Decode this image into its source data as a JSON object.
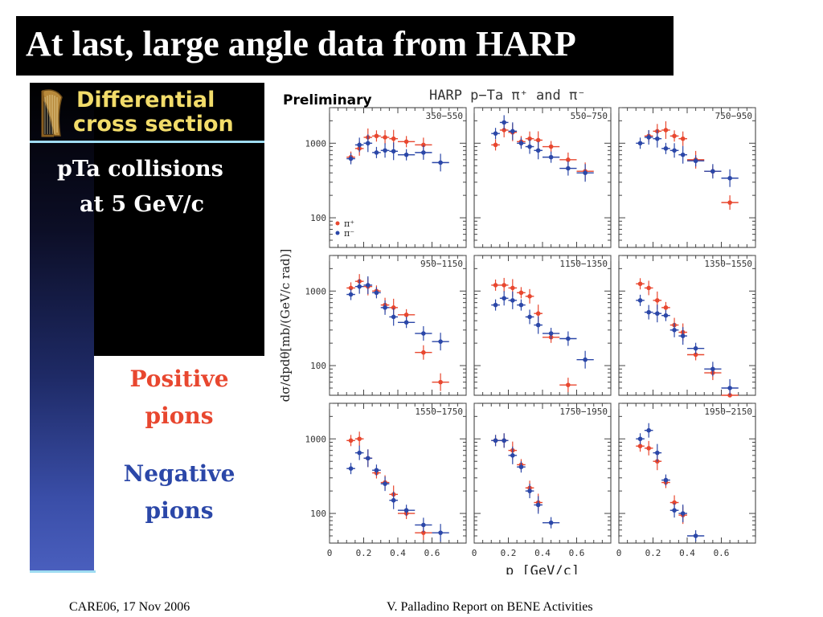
{
  "slide": {
    "title": "At last, large angle data from HARP",
    "footer_left": "CARE06, 17 Nov 2006",
    "footer_right": "V. Palladino Report on BENE Activities"
  },
  "sidebar": {
    "caption_line1": "Differential",
    "caption_line2": "cross section",
    "collision_line1": "pTa collisions",
    "collision_line2": "at 5 GeV/c",
    "positive_line1": "Positive",
    "positive_line2": "pions",
    "negative_line1": "Negative",
    "negative_line2": "pions",
    "harp_icon": "harp-icon"
  },
  "colors": {
    "positive": "#e8472f",
    "negative": "#2b47a8",
    "caption": "#f2dc6a",
    "rule": "#9fdcf2"
  },
  "chart_data": {
    "type": "scatter",
    "preliminary_label": "Preliminary",
    "title": "HARP p−Ta π⁺ and π⁻",
    "ylabel": "dσ/dpdθ[mb/(GeV/c rad)]",
    "xlabel": "p  [GeV/c]",
    "xlim": [
      0,
      0.8
    ],
    "ylim": [
      40,
      3000
    ],
    "y_scale": "log",
    "x_ticks": [
      "0",
      "0.2",
      "0.4",
      "0.6"
    ],
    "y_ticks": [
      "1000",
      "100"
    ],
    "legend": {
      "position": "left",
      "entries": [
        "π⁺",
        "π⁻"
      ]
    },
    "panels": [
      {
        "label": "350−550",
        "series": [
          {
            "name": "π⁺",
            "x": [
              0.125,
              0.175,
              0.225,
              0.275,
              0.325,
              0.375,
              0.45,
              0.55
            ],
            "y": [
              650,
              850,
              1200,
              1250,
              1200,
              1150,
              1050,
              950
            ]
          },
          {
            "name": "π⁻",
            "x": [
              0.125,
              0.175,
              0.225,
              0.275,
              0.325,
              0.375,
              0.45,
              0.55,
              0.65
            ],
            "y": [
              620,
              950,
              1000,
              750,
              800,
              780,
              700,
              750,
              550
            ]
          }
        ]
      },
      {
        "label": "550−750",
        "series": [
          {
            "name": "π⁺",
            "x": [
              0.125,
              0.175,
              0.225,
              0.275,
              0.325,
              0.375,
              0.45,
              0.55,
              0.65
            ],
            "y": [
              950,
              1500,
              1400,
              1050,
              1150,
              1100,
              900,
              600,
              420
            ]
          },
          {
            "name": "π⁻",
            "x": [
              0.125,
              0.175,
              0.225,
              0.275,
              0.325,
              0.375,
              0.45,
              0.55,
              0.65
            ],
            "y": [
              1350,
              1900,
              1450,
              1000,
              900,
              800,
              650,
              460,
              400
            ]
          }
        ]
      },
      {
        "label": "750−950",
        "series": [
          {
            "name": "π⁺",
            "x": [
              0.175,
              0.225,
              0.275,
              0.325,
              0.375,
              0.45,
              0.55,
              0.65
            ],
            "y": [
              1250,
              1450,
              1500,
              1250,
              1150,
              600,
              420,
              160
            ]
          },
          {
            "name": "π⁻",
            "x": [
              0.125,
              0.175,
              0.225,
              0.275,
              0.325,
              0.375,
              0.45,
              0.55,
              0.65
            ],
            "y": [
              1000,
              1200,
              1150,
              850,
              800,
              700,
              580,
              420,
              340
            ]
          }
        ]
      },
      {
        "label": "950−1150",
        "series": [
          {
            "name": "π⁺",
            "x": [
              0.125,
              0.175,
              0.225,
              0.275,
              0.325,
              0.375,
              0.45,
              0.55,
              0.65
            ],
            "y": [
              1100,
              1350,
              1150,
              1000,
              650,
              600,
              480,
              150,
              60
            ]
          },
          {
            "name": "π⁻",
            "x": [
              0.125,
              0.175,
              0.225,
              0.275,
              0.325,
              0.375,
              0.45,
              0.55,
              0.65
            ],
            "y": [
              900,
              1150,
              1200,
              950,
              600,
              450,
              380,
              270,
              210
            ]
          }
        ]
      },
      {
        "label": "1150−1350",
        "series": [
          {
            "name": "π⁺",
            "x": [
              0.125,
              0.175,
              0.225,
              0.275,
              0.325,
              0.375,
              0.45,
              0.55
            ],
            "y": [
              1200,
              1200,
              1100,
              950,
              850,
              500,
              240,
              55
            ]
          },
          {
            "name": "π⁻",
            "x": [
              0.125,
              0.175,
              0.225,
              0.275,
              0.325,
              0.375,
              0.45,
              0.55,
              0.65
            ],
            "y": [
              650,
              800,
              750,
              650,
              450,
              350,
              270,
              230,
              120
            ]
          }
        ]
      },
      {
        "label": "1350−1550",
        "series": [
          {
            "name": "π⁺",
            "x": [
              0.125,
              0.175,
              0.225,
              0.275,
              0.325,
              0.375,
              0.45,
              0.55,
              0.65
            ],
            "y": [
              1250,
              1100,
              750,
              600,
              350,
              280,
              140,
              80,
              40
            ]
          },
          {
            "name": "π⁻",
            "x": [
              0.125,
              0.175,
              0.225,
              0.275,
              0.325,
              0.375,
              0.45,
              0.55,
              0.65
            ],
            "y": [
              750,
              520,
              500,
              470,
              300,
              250,
              170,
              90,
              50
            ]
          }
        ]
      },
      {
        "label": "1550−1750",
        "series": [
          {
            "name": "π⁺",
            "x": [
              0.125,
              0.175,
              0.225,
              0.275,
              0.325,
              0.375,
              0.45,
              0.55
            ],
            "y": [
              950,
              1000,
              550,
              350,
              260,
              180,
              100,
              55
            ]
          },
          {
            "name": "π⁻",
            "x": [
              0.125,
              0.175,
              0.225,
              0.275,
              0.325,
              0.375,
              0.45,
              0.55,
              0.65
            ],
            "y": [
              400,
              650,
              550,
              380,
              250,
              150,
              110,
              70,
              55
            ]
          }
        ]
      },
      {
        "label": "1750−1950",
        "series": [
          {
            "name": "π⁺",
            "x": [
              0.125,
              0.175,
              0.225,
              0.275,
              0.325,
              0.375
            ],
            "y": [
              950,
              950,
              700,
              450,
              220,
              140
            ]
          },
          {
            "name": "π⁻",
            "x": [
              0.125,
              0.175,
              0.225,
              0.275,
              0.325,
              0.375,
              0.45
            ],
            "y": [
              950,
              950,
              600,
              420,
              200,
              130,
              75
            ]
          }
        ]
      },
      {
        "label": "1950−2150",
        "series": [
          {
            "name": "π⁺",
            "x": [
              0.125,
              0.175,
              0.225,
              0.275,
              0.325,
              0.375
            ],
            "y": [
              800,
              750,
              500,
              260,
              140,
              95
            ]
          },
          {
            "name": "π⁻",
            "x": [
              0.125,
              0.175,
              0.225,
              0.275,
              0.325,
              0.375,
              0.45
            ],
            "y": [
              1000,
              1300,
              650,
              280,
              110,
              100,
              50
            ]
          }
        ]
      }
    ]
  }
}
